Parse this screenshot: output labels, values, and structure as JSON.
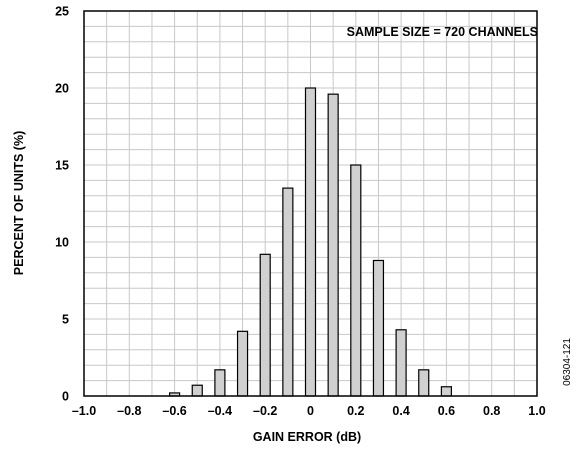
{
  "chart_data": {
    "type": "bar",
    "xlabel": "GAIN ERROR (dB)",
    "ylabel": "PERCENT OF UNITS (%)",
    "annotation": "SAMPLE SIZE = 720 CHANNELS",
    "figure_id": "06304-121",
    "xlim": [
      -1.0,
      1.0
    ],
    "ylim": [
      0,
      25
    ],
    "x_ticks": [
      "–1.0",
      "–0.8",
      "–0.6",
      "–0.4",
      "–0.2",
      "0",
      "0.2",
      "0.4",
      "0.6",
      "0.8",
      "1.0"
    ],
    "y_ticks": [
      "0",
      "5",
      "10",
      "15",
      "20",
      "25"
    ],
    "grid": true,
    "bar_color": "#d0d0d0",
    "x": [
      -0.6,
      -0.5,
      -0.4,
      -0.3,
      -0.2,
      -0.1,
      0.0,
      0.1,
      0.2,
      0.3,
      0.4,
      0.5,
      0.6
    ],
    "values": [
      0.2,
      0.7,
      1.7,
      4.2,
      9.2,
      13.5,
      20.0,
      19.6,
      15.0,
      8.8,
      4.3,
      1.7,
      0.6
    ]
  }
}
